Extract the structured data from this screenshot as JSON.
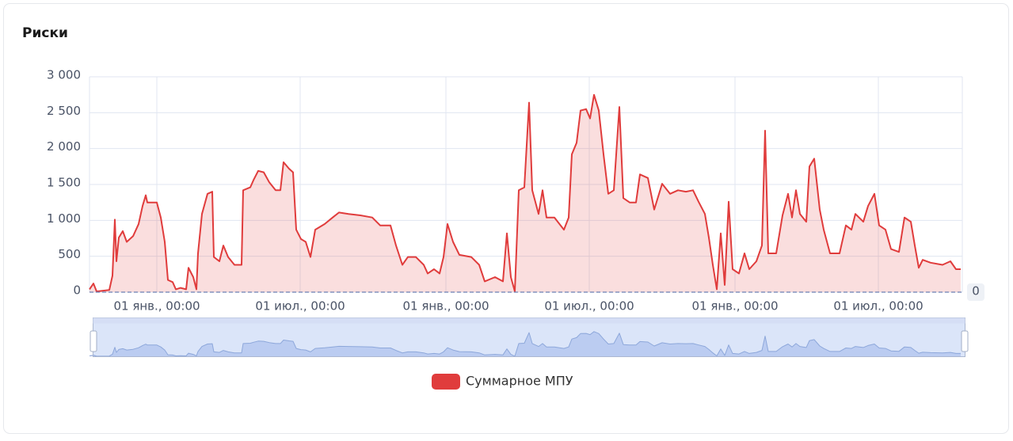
{
  "chart_data": {
    "type": "area",
    "title": "Риски",
    "series": [
      {
        "name": "Суммарное МПУ",
        "color": "#e03c3c",
        "x": [
          -85,
          -80,
          -76,
          -60,
          -56,
          -53,
          -51,
          -48,
          -43,
          -38,
          -30,
          -23,
          -18,
          -14,
          -12,
          0,
          5,
          10,
          14,
          20,
          24,
          30,
          37,
          40,
          46,
          50,
          52,
          57,
          64,
          70,
          72,
          79,
          84,
          90,
          98,
          107,
          109,
          118,
          122,
          128,
          135,
          142,
          150,
          156,
          160,
          167,
          172,
          176,
          182,
          188,
          194,
          200,
          212,
          222,
          230,
          242,
          257,
          272,
          282,
          295,
          302,
          310,
          317,
          327,
          337,
          342,
          350,
          357,
          362,
          367,
          374,
          382,
          397,
          407,
          414,
          427,
          437,
          442,
          447,
          452,
          457,
          464,
          470,
          474,
          482,
          487,
          492,
          502,
          514,
          520,
          524,
          530,
          535,
          542,
          547,
          552,
          558,
          564,
          570,
          577,
          584,
          589,
          597,
          605,
          610,
          620,
          628,
          638,
          648,
          658,
          668,
          677,
          684,
          692,
          697,
          702,
          707,
          712,
          717,
          722,
          727,
          735,
          742,
          748,
          757,
          764,
          768,
          772,
          782,
          790,
          797,
          802,
          807,
          812,
          820,
          824,
          830,
          837,
          842,
          850,
          862,
          870,
          877,
          882,
          892,
          898,
          906,
          912,
          920,
          927,
          937,
          944,
          952,
          957,
          962,
          967,
          977,
          992,
          1002,
          1009,
          1015
        ],
        "values": [
          40,
          120,
          10,
          30,
          230,
          1010,
          430,
          760,
          850,
          700,
          780,
          950,
          1200,
          1350,
          1250,
          1250,
          1040,
          700,
          170,
          140,
          40,
          60,
          40,
          340,
          210,
          40,
          540,
          1090,
          1370,
          1400,
          490,
          430,
          650,
          490,
          380,
          380,
          1420,
          1460,
          1560,
          1690,
          1670,
          1530,
          1420,
          1420,
          1810,
          1720,
          1670,
          870,
          740,
          700,
          490,
          870,
          950,
          1040,
          1110,
          1090,
          1070,
          1040,
          930,
          930,
          650,
          380,
          490,
          490,
          380,
          260,
          320,
          260,
          490,
          950,
          700,
          520,
          490,
          380,
          150,
          210,
          150,
          820,
          210,
          10,
          1420,
          1460,
          2640,
          1420,
          1090,
          1420,
          1040,
          1040,
          870,
          1040,
          1920,
          2080,
          2530,
          2550,
          2420,
          2750,
          2530,
          1920,
          1370,
          1420,
          2580,
          1310,
          1250,
          1250,
          1640,
          1590,
          1150,
          1510,
          1370,
          1420,
          1400,
          1420,
          1260,
          1090,
          760,
          380,
          40,
          820,
          100,
          1260,
          320,
          260,
          540,
          320,
          430,
          650,
          2250,
          540,
          540,
          1070,
          1370,
          1040,
          1420,
          1090,
          980,
          1750,
          1860,
          1150,
          870,
          540,
          540,
          930,
          870,
          1090,
          980,
          1200,
          1370,
          930,
          870,
          600,
          560,
          1040,
          980,
          650,
          340,
          450,
          410,
          380,
          430,
          320,
          320
        ]
      }
    ],
    "xlim": [
      -85,
      1017
    ],
    "xticks": [
      {
        "value": 0,
        "label": "01 янв., 00:00"
      },
      {
        "value": 181,
        "label": "01 июл., 00:00"
      },
      {
        "value": 365,
        "label": "01 янв., 00:00"
      },
      {
        "value": 546,
        "label": "01 июл., 00:00"
      },
      {
        "value": 730,
        "label": "01 янв., 00:00"
      },
      {
        "value": 911,
        "label": "01 июл., 00:00"
      }
    ],
    "ylim": [
      0,
      3000
    ],
    "yticks": [
      0,
      500,
      {
        "value": 1000,
        "label": "1 000"
      },
      {
        "value": 1500,
        "label": "1 500"
      },
      {
        "value": 2000,
        "label": "2 000"
      },
      {
        "value": 2500,
        "label": "2 500"
      },
      {
        "value": 3000,
        "label": "3 000"
      }
    ],
    "markline": 0,
    "grid": true
  }
}
